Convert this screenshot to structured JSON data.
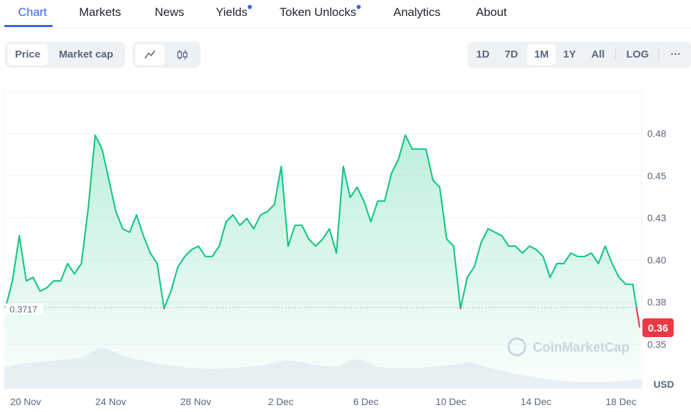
{
  "tabs": [
    "Chart",
    "Markets",
    "News",
    "Yields",
    "Token Unlocks",
    "Analytics",
    "About"
  ],
  "metric_buttons": [
    "Price",
    "Market cap"
  ],
  "range_buttons": [
    "1D",
    "7D",
    "1M",
    "1Y",
    "All"
  ],
  "scale_button": "LOG",
  "more_button": "···",
  "chart_data": {
    "type": "line",
    "watermark": "CoinMarketCap",
    "y_unit": "USD",
    "color": "#16c784",
    "down_color": "#ea3943",
    "grid": true,
    "x_labels": [
      "20 Nov",
      "24 Nov",
      "28 Nov",
      "2 Dec",
      "6 Dec",
      "10 Dec",
      "14 Dec",
      "18 Dec"
    ],
    "ylim": [
      0.325,
      0.5
    ],
    "yticks": [
      0.35,
      {
        "value": 0.375,
        "label": "0.38"
      },
      {
        "value": 0.4,
        "label": "0.40"
      },
      {
        "value": 0.425,
        "label": "0.43"
      },
      0.45,
      {
        "value": 0.475,
        "label": "0.48"
      }
    ],
    "values": [
      0.3717,
      0.3876,
      0.4144,
      0.3876,
      0.3897,
      0.3815,
      0.3835,
      0.3876,
      0.3876,
      0.3979,
      0.3918,
      0.3979,
      0.4309,
      0.4741,
      0.4659,
      0.4474,
      0.4288,
      0.4185,
      0.4165,
      0.4268,
      0.4144,
      0.4041,
      0.3979,
      0.3712,
      0.3815,
      0.3959,
      0.4021,
      0.4062,
      0.4082,
      0.4021,
      0.4021,
      0.4082,
      0.4227,
      0.4268,
      0.4206,
      0.4247,
      0.4185,
      0.4268,
      0.4288,
      0.4329,
      0.4556,
      0.4082,
      0.4206,
      0.4206,
      0.4124,
      0.4082,
      0.4124,
      0.4185,
      0.4041,
      0.4556,
      0.4371,
      0.4432,
      0.435,
      0.4227,
      0.435,
      0.435,
      0.4515,
      0.4597,
      0.4741,
      0.4659,
      0.4659,
      0.4659,
      0.4474,
      0.4432,
      0.4124,
      0.4082,
      0.3712,
      0.3897,
      0.3959,
      0.4103,
      0.4185,
      0.4165,
      0.4144,
      0.4082,
      0.4082,
      0.4041,
      0.4082,
      0.4062,
      0.4021,
      0.3897,
      0.3979,
      0.3979,
      0.4041,
      0.4021,
      0.4021,
      0.4041,
      0.3979,
      0.4082,
      0.3979,
      0.3897,
      0.3856,
      0.3856,
      0.36
    ]
  }
}
